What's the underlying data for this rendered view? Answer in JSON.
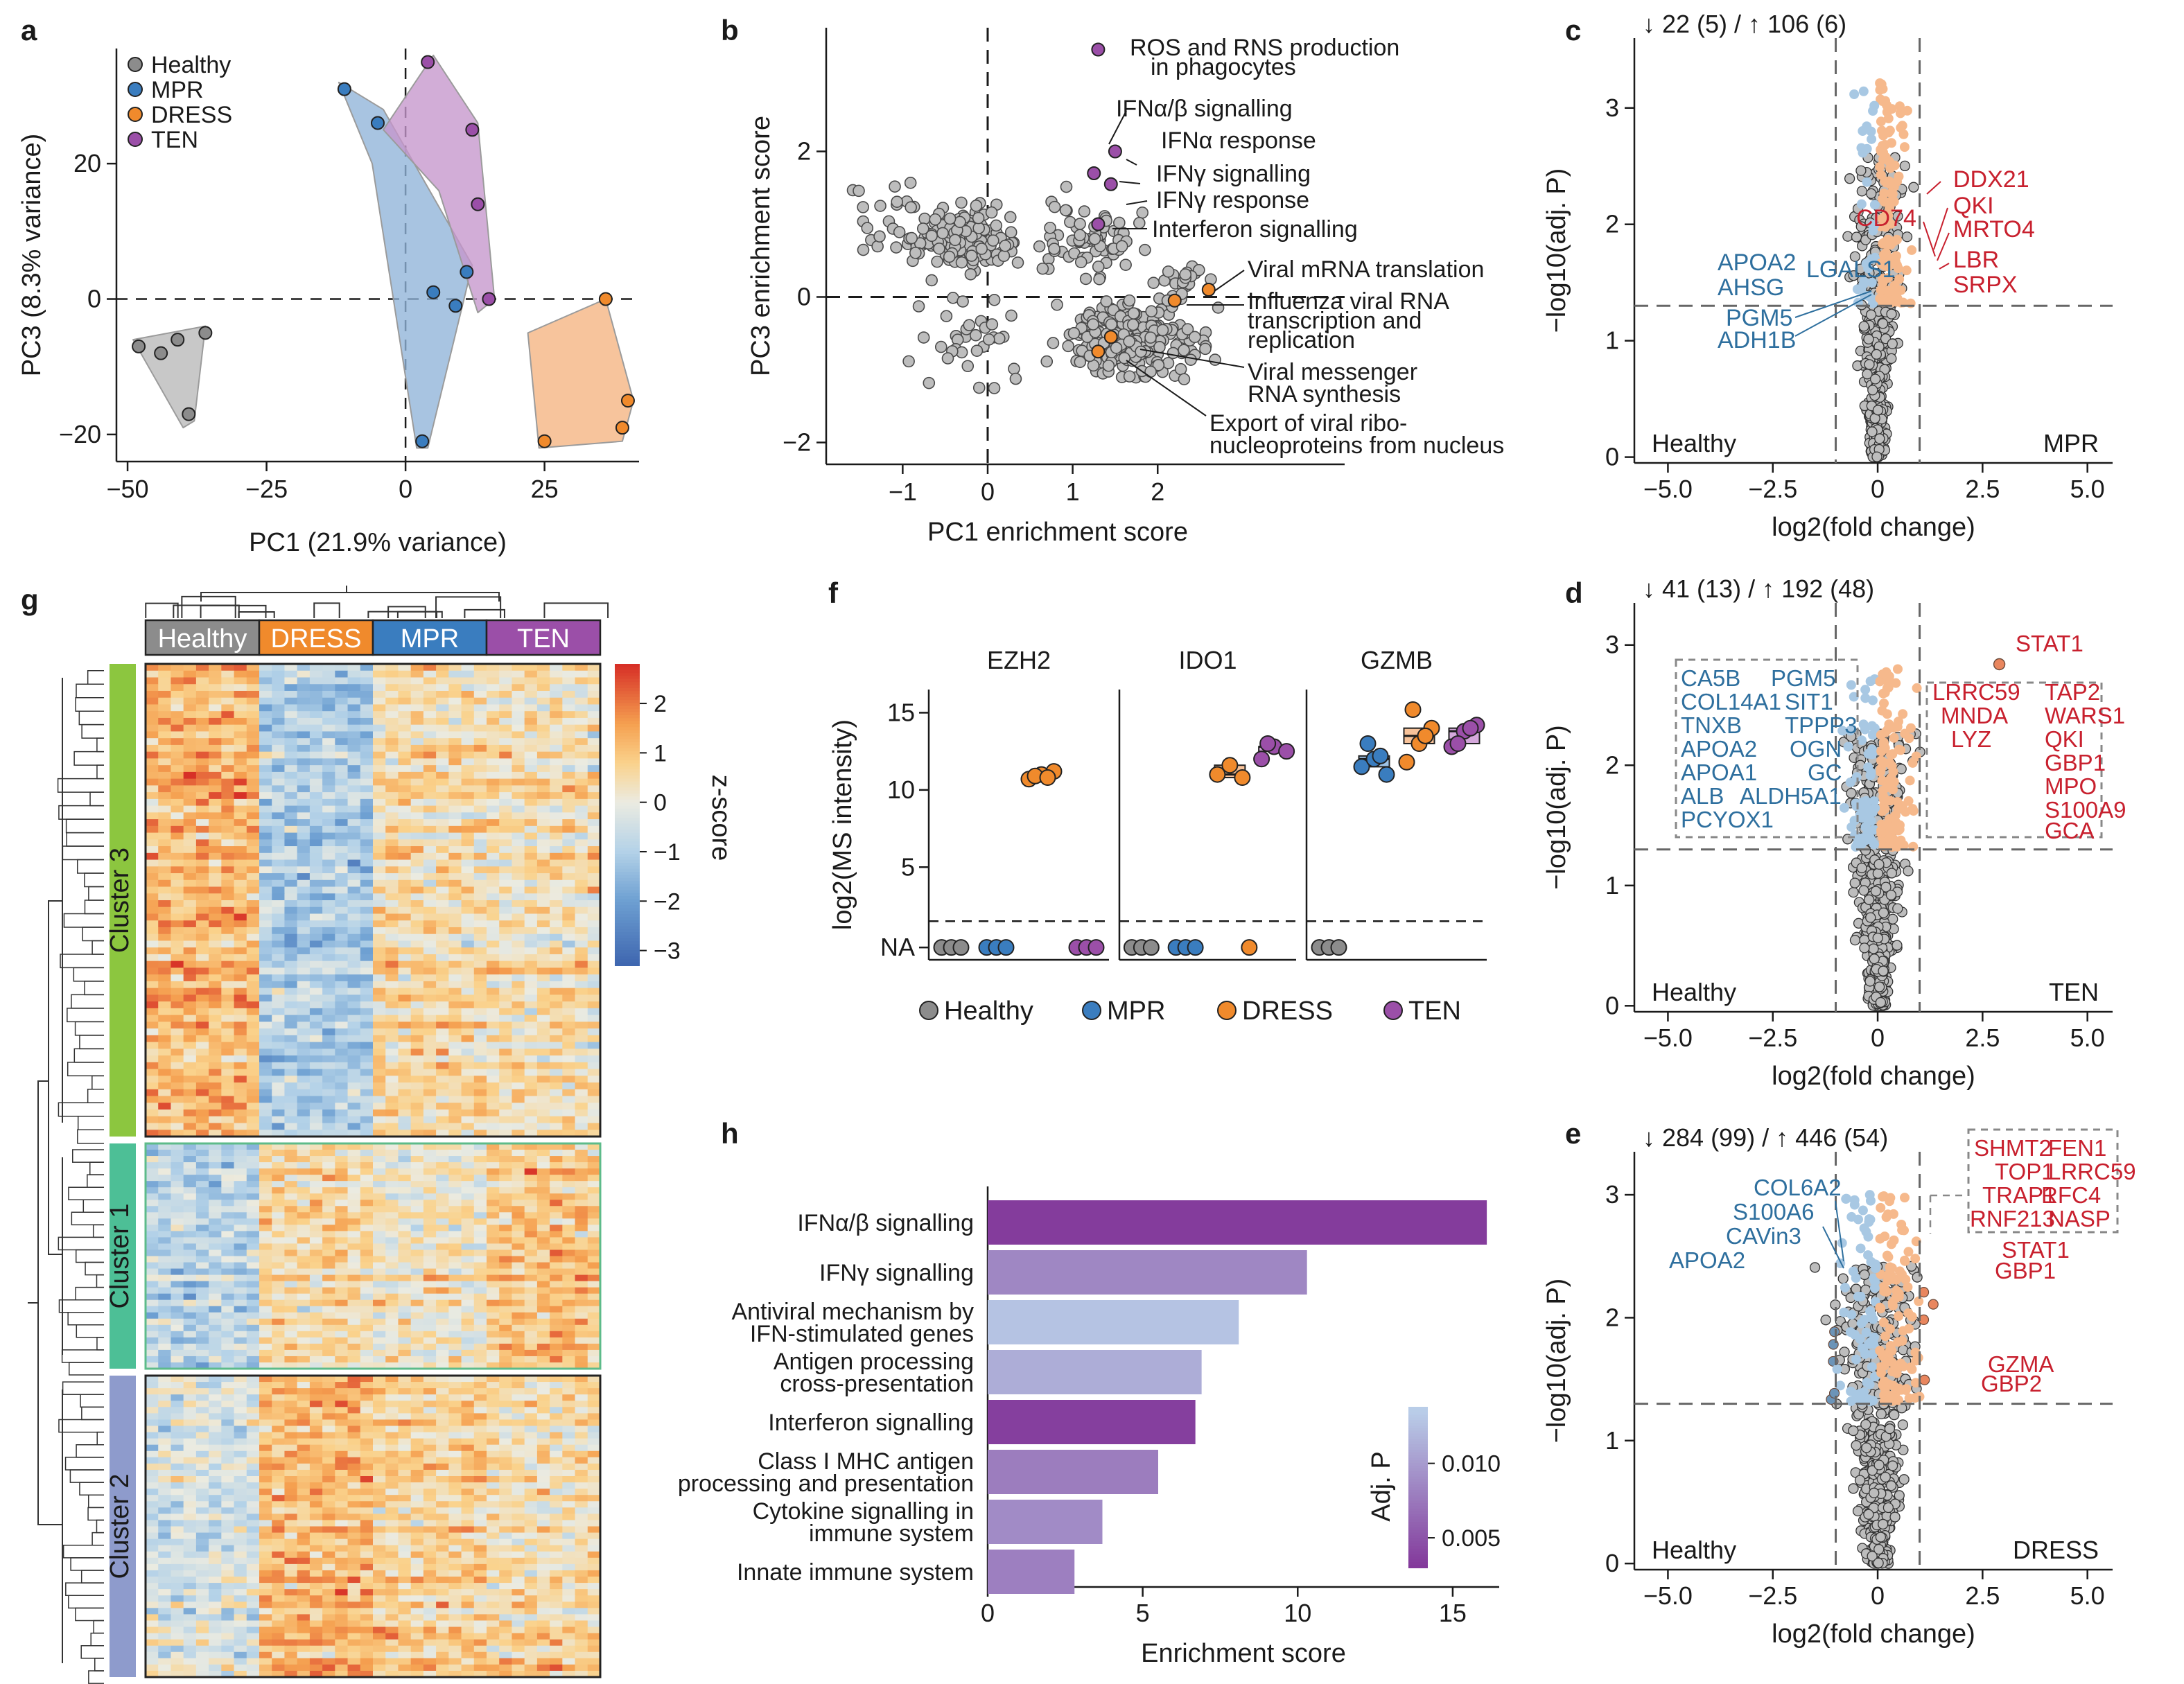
{
  "colors": {
    "healthy": "#8c8c8c",
    "mpr": "#3a7dbf",
    "dress": "#f08a2c",
    "ten": "#9b4fa8",
    "hull_healthy": "#b9b9b9",
    "hull_mpr": "#8fb4d9",
    "hull_dress": "#f5b380",
    "hull_ten": "#c596cc",
    "up": "#c8202e",
    "down": "#2e6f9e",
    "up_light": "#f6b98c",
    "down_light": "#a8c8e3",
    "up_mid": "#e9865e",
    "down_mid": "#6c94b8",
    "cluster3": "#8cc63f",
    "cluster1": "#4dbf96",
    "cluster2": "#8e9bcc"
  },
  "panel_letters": {
    "a": "a",
    "b": "b",
    "c": "c",
    "d": "d",
    "e": "e",
    "f": "f",
    "g": "g",
    "h": "h"
  },
  "legend_groups": [
    "Healthy",
    "MPR",
    "DRESS",
    "TEN"
  ],
  "chart_data": [
    {
      "panel": "a",
      "type": "scatter",
      "xlabel": "PC1 (21.9% variance)",
      "ylabel": "PC3 (8.3% variance)",
      "xticks": [
        "−50",
        "−25",
        "0",
        "25"
      ],
      "yticks": [
        "20",
        "0",
        "−20"
      ],
      "xlim": [
        -52,
        42
      ],
      "ylim": [
        -24,
        37
      ],
      "series": [
        {
          "name": "Healthy",
          "points": [
            [
              -48,
              -7
            ],
            [
              -44,
              -8
            ],
            [
              -41,
              -6
            ],
            [
              -39,
              -17
            ],
            [
              -36,
              -5
            ]
          ]
        },
        {
          "name": "MPR",
          "points": [
            [
              -11,
              31
            ],
            [
              -5,
              26
            ],
            [
              3,
              -21
            ],
            [
              5,
              1
            ],
            [
              9,
              -1
            ],
            [
              11,
              4
            ]
          ]
        },
        {
          "name": "DRESS",
          "points": [
            [
              25,
              -21
            ],
            [
              36,
              0
            ],
            [
              39,
              -19
            ],
            [
              40,
              -15
            ]
          ]
        },
        {
          "name": "TEN",
          "points": [
            [
              4,
              35
            ],
            [
              12,
              25
            ],
            [
              13,
              14
            ],
            [
              15,
              0
            ]
          ]
        }
      ]
    },
    {
      "panel": "b",
      "type": "scatter",
      "xlabel": "PC1 enrichment score",
      "ylabel": "PC3 enrichment score",
      "xticks": [
        "−1",
        "0",
        "1",
        "2"
      ],
      "yticks": [
        "2",
        "0",
        "−2"
      ],
      "xlim": [
        -1.9,
        4.2
      ],
      "ylim": [
        -2.3,
        3.7
      ],
      "annotations": [
        "ROS and RNS production",
        "in phagocytes",
        "IFNα/β signalling",
        "IFNα response",
        "IFNγ signalling",
        "IFNγ response",
        "Interferon signalling",
        "Viral mRNA translation",
        "Influenza viral RNA",
        "transcription and",
        "replication",
        "Viral messenger",
        "RNA synthesis",
        "Export of viral ribo-",
        "nucleoproteins from nucleus"
      ],
      "highlight_purple": [
        [
          1.3,
          3.4
        ],
        [
          1.5,
          2.0
        ],
        [
          1.25,
          1.7
        ],
        [
          1.45,
          1.55
        ],
        [
          1.3,
          1.0
        ]
      ],
      "highlight_orange": [
        [
          2.6,
          0.1
        ],
        [
          2.2,
          -0.05
        ],
        [
          1.45,
          -0.55
        ],
        [
          1.3,
          -0.75
        ]
      ]
    },
    {
      "panel": "c",
      "type": "volcano",
      "header": "↓ 22 (5) / ↑ 106 (6)",
      "xlabel": "log2(fold change)",
      "ylabel": "−log10(adj. P)",
      "xticks": [
        "−5.0",
        "−2.5",
        "0",
        "2.5",
        "5.0"
      ],
      "yticks": [
        "0",
        "1",
        "2",
        "3"
      ],
      "xlim": [
        -5.8,
        5.6
      ],
      "ylim": [
        -0.05,
        3.6
      ],
      "ythresh": 1.3,
      "xthresh": 1,
      "left_label": "Healthy",
      "right_label": "MPR",
      "up_labels": [
        "DDX21",
        "QKI",
        "CD74",
        "MRTO4",
        "LBR",
        "SRPX"
      ],
      "down_labels": [
        "APOA2",
        "LGALS1",
        "AHSG",
        "PGM5",
        "ADH1B"
      ],
      "spread": 0.9,
      "ymax": 3.3,
      "n": 430
    },
    {
      "panel": "d",
      "type": "volcano",
      "header": "↓ 41 (13) / ↑ 192 (48)",
      "xlabel": "log2(fold change)",
      "ylabel": "−log10(adj. P)",
      "xticks": [
        "−5.0",
        "−2.5",
        "0",
        "2.5",
        "5.0"
      ],
      "yticks": [
        "0",
        "1",
        "2",
        "3"
      ],
      "xlim": [
        -5.8,
        5.6
      ],
      "ylim": [
        -0.05,
        3.35
      ],
      "ythresh": 1.3,
      "xthresh": 1,
      "left_label": "Healthy",
      "right_label": "TEN",
      "up_labels": [
        "STAT1",
        "LRRC59",
        "TAP2",
        "MNDA",
        "WARS1",
        "LYZ",
        "QKI",
        "GBP1",
        "MPO",
        "S100A9",
        "GCA"
      ],
      "down_labels": [
        "CA5B",
        "PGM5",
        "COL14A1",
        "SIT1",
        "TNXB",
        "TPPP3",
        "APOA2",
        "OGN",
        "APOA1",
        "GC",
        "ALB",
        "ALDH5A1",
        "PCYOX1"
      ],
      "spread": 1.1,
      "ymax": 2.9,
      "n": 480
    },
    {
      "panel": "e",
      "type": "volcano",
      "header": "↓ 284 (99) / ↑ 446 (54)",
      "xlabel": "log2(fold change)",
      "ylabel": "−log10(adj. P)",
      "xticks": [
        "−5.0",
        "−2.5",
        "0",
        "2.5",
        "5.0"
      ],
      "yticks": [
        "0",
        "1",
        "2",
        "3"
      ],
      "xlim": [
        -5.8,
        5.6
      ],
      "ylim": [
        -0.05,
        3.35
      ],
      "ythresh": 1.3,
      "xthresh": 1,
      "left_label": "Healthy",
      "right_label": "DRESS",
      "up_labels": [
        "SHMT2",
        "FEN1",
        "TOP1",
        "LRRC59",
        "TRAP1",
        "RFC4",
        "RNF213",
        "NASP",
        "STAT1",
        "GBP1",
        "GZMA",
        "GBP2"
      ],
      "down_labels": [
        "COL6A2",
        "S100A6",
        "CAVin3",
        "APOA2"
      ],
      "spread": 1.4,
      "ymax": 3.1,
      "n": 560
    },
    {
      "panel": "f",
      "type": "box",
      "ylabel": "log2(MS intensity)",
      "facets": [
        "EZH2",
        "IDO1",
        "GZMB"
      ],
      "yticks": [
        "15",
        "10",
        "5",
        "NA"
      ],
      "ylim": [
        -1,
        16.5
      ],
      "groups": [
        "Healthy",
        "MPR",
        "DRESS",
        "TEN"
      ],
      "values": {
        "EZH2": {
          "Healthy": [
            null,
            null,
            null
          ],
          "MPR": [
            null,
            null,
            null
          ],
          "DRESS": [
            10.7,
            11.0,
            11.2,
            10.9,
            10.8
          ],
          "TEN": [
            null,
            null,
            null
          ]
        },
        "IDO1": {
          "Healthy": [
            null,
            null,
            null
          ],
          "MPR": [
            null,
            null,
            null
          ],
          "DRESS": [
            11.0,
            11.6,
            10.8,
            null
          ],
          "TEN": [
            12.0,
            12.8,
            12.5,
            13.0
          ]
        },
        "GZMB": {
          "Healthy": [
            null,
            null,
            null
          ],
          "MPR": [
            11.5,
            12.0,
            11.0,
            13.0,
            12.2
          ],
          "DRESS": [
            11.8,
            13.0,
            14.0,
            15.2,
            13.5
          ],
          "TEN": [
            12.8,
            13.8,
            14.2,
            13.0,
            14.0
          ]
        }
      }
    },
    {
      "panel": "g",
      "type": "heatmap",
      "column_groups": [
        "Healthy",
        "DRESS",
        "MPR",
        "TEN"
      ],
      "row_clusters": [
        "Cluster 3",
        "Cluster 1",
        "Cluster 2"
      ],
      "colorbar_label": "z-score",
      "colorbar_ticks": [
        "2",
        "1",
        "0",
        "−1",
        "−2",
        "−3"
      ],
      "zlim": [
        -3.3,
        2.8
      ]
    },
    {
      "panel": "h",
      "type": "bar",
      "xlabel": "Enrichment score",
      "xticks": [
        "0",
        "5",
        "10",
        "15"
      ],
      "xlim": [
        0,
        16.5
      ],
      "categories": [
        [
          "IFNα/β signalling"
        ],
        [
          "IFNγ signalling"
        ],
        [
          "Antiviral mechanism by",
          "IFN-stimulated genes"
        ],
        [
          "Antigen processing",
          "cross-presentation"
        ],
        [
          "Interferon signalling"
        ],
        [
          "Class I MHC antigen",
          "processing and presentation"
        ],
        [
          "Cytokine signalling in",
          "immune system"
        ],
        [
          "Innate immune system"
        ]
      ],
      "values": [
        16.1,
        10.3,
        8.1,
        6.9,
        6.7,
        5.5,
        3.7,
        2.8
      ],
      "adj_p": [
        0.0032,
        0.0085,
        0.0128,
        0.0112,
        0.0034,
        0.0078,
        0.0088,
        0.008
      ],
      "legend_title": "Adj. P",
      "legend_ticks": [
        "0.010",
        "0.005"
      ]
    }
  ]
}
